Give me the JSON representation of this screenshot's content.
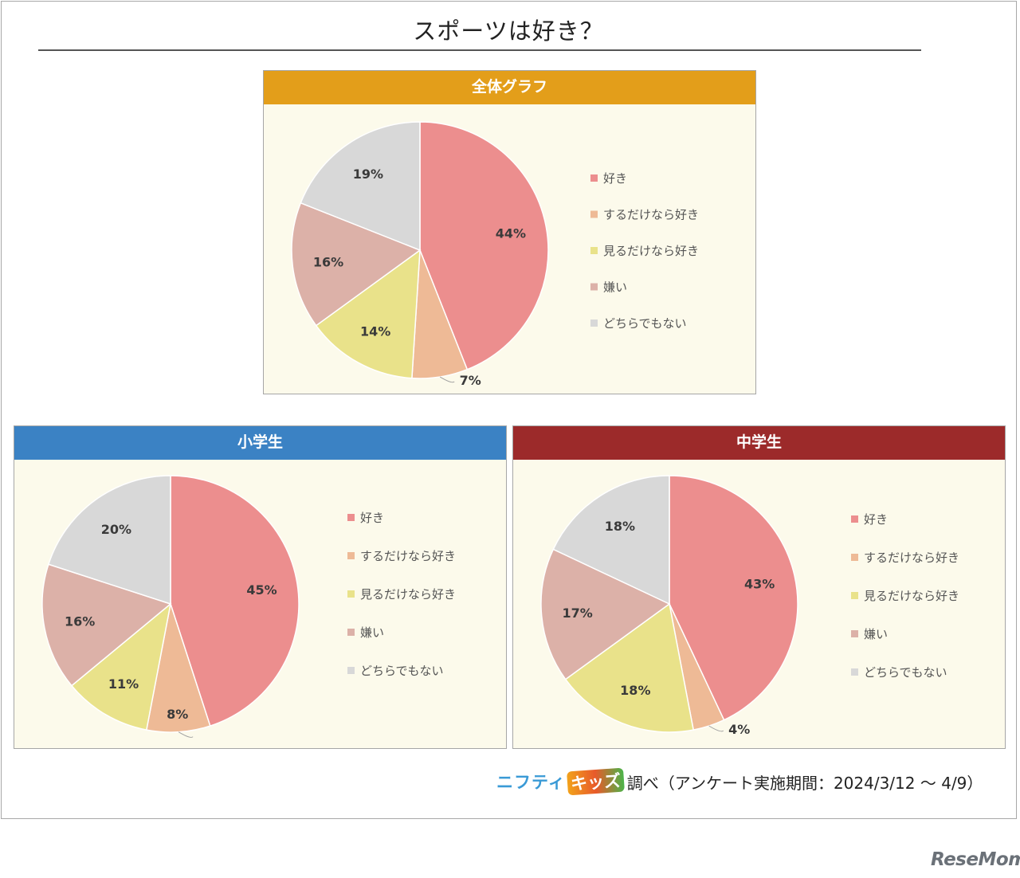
{
  "title": "スポーツは好き？",
  "colors": {
    "like": "#ec8e8e",
    "only_do": "#eeba96",
    "only_watch": "#e9e28a",
    "dislike": "#dcb1a8",
    "neither": "#d8d8d8",
    "header_overall": "#e39e1a",
    "header_elementary": "#3b82c4",
    "header_junior": "#9c2a2a"
  },
  "legend": [
    "好き",
    "するだけなら好き",
    "見るだけなら好き",
    "嫌い",
    "どちらでもない"
  ],
  "chart_data": [
    {
      "type": "pie",
      "title": "全体グラフ",
      "labels": [
        "好き",
        "するだけなら好き",
        "見るだけなら好き",
        "嫌い",
        "どちらでもない"
      ],
      "values": [
        44,
        7,
        14,
        16,
        19
      ],
      "unit": "%",
      "legend_position": "right"
    },
    {
      "type": "pie",
      "title": "小学生",
      "labels": [
        "好き",
        "するだけなら好き",
        "見るだけなら好き",
        "嫌い",
        "どちらでもない"
      ],
      "values": [
        45,
        8,
        11,
        16,
        20
      ],
      "unit": "%",
      "legend_position": "right"
    },
    {
      "type": "pie",
      "title": "中学生",
      "labels": [
        "好き",
        "するだけなら好き",
        "見るだけなら好き",
        "嫌い",
        "どちらでもない"
      ],
      "values": [
        43,
        4,
        18,
        17,
        18
      ],
      "unit": "%",
      "legend_position": "right"
    }
  ],
  "footer": {
    "brand_nifty": "ニフティ",
    "brand_kids": "キッズ",
    "text": "調べ（アンケート実施期間：2024/3/12 ～ 4/9）"
  },
  "watermark": "ReseMom"
}
